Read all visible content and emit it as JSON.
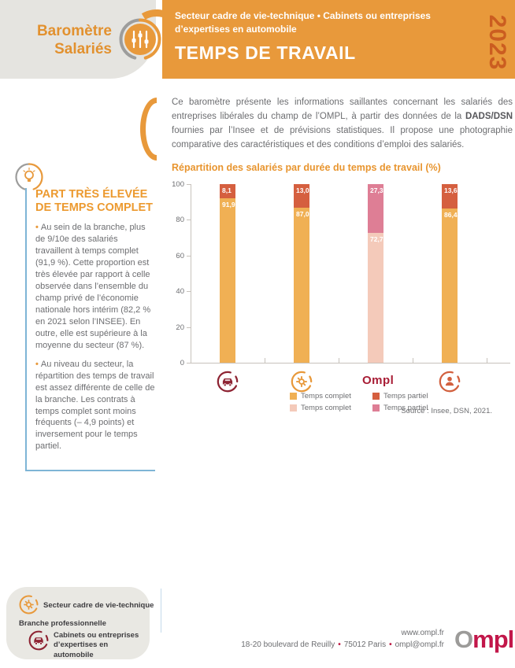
{
  "header": {
    "brand_line1": "Baromètre",
    "brand_line2": "Salariés",
    "subtitle_line1": "Secteur cadre de vie-technique  •  Cabinets ou entreprises",
    "subtitle_line2": "d’expertises en automobile",
    "title": "TEMPS DE TRAVAIL",
    "year": "2023"
  },
  "intro": {
    "lead_before": "Ce baromètre présente les informations saillantes concernant les salariés des entreprises libérales du champ de l’OMPL, à partir des données de la ",
    "lead_bold": "DADS/DSN",
    "lead_after": " fournies par l’Insee et de prévisions statistiques. Il propose une photographie comparative des caractéristiques et des conditions d’emploi des salariés."
  },
  "sidebar": {
    "heading_line1": "PART TRÈS ÉLEVÉE",
    "heading_line2": "DE TEMPS COMPLET",
    "bullets": [
      "Au sein de la branche, plus de 9/10e des salariés travaillent à temps complet (91,9 %). Cette proportion est très élevée par rapport à celle observée dans l’ensemble du champ privé de l’économie nationale hors intérim (82,2 % en 2021 selon l’INSEE). En outre, elle est supérieure à la moyenne du secteur (87 %).",
      "Au niveau du secteur, la répartition des temps de travail est assez différente de celle de la branche. Les contrats à temps complet sont moins fréquents (– 4,9 points) et inversement pour le temps partiel."
    ]
  },
  "chart_data": {
    "type": "bar",
    "stacked": true,
    "title": "Répartition des salariés par durée du temps de travail (%)",
    "categories": [
      "car-circle-icon",
      "tools-circle-icon",
      "ompl-logo",
      "person-circle-icon"
    ],
    "ompl_axis_text": "Ompl",
    "series": [
      {
        "name": "Temps complet",
        "values": [
          91.9,
          87.0,
          72.7,
          86.4
        ],
        "labels": [
          "91,9",
          "87,0",
          "72,7",
          "86,4"
        ],
        "colors": [
          "#F0B054",
          "#F0B054",
          "#F4CABA",
          "#F0B054"
        ]
      },
      {
        "name": "Temps partiel",
        "values": [
          8.1,
          13.0,
          27.3,
          13.6
        ],
        "labels": [
          "8,1",
          "13,0",
          "27,3",
          "13,6"
        ],
        "colors": [
          "#D55F3F",
          "#D55F3F",
          "#DE7E95",
          "#D55F3F"
        ]
      }
    ],
    "ylim": [
      0,
      100
    ],
    "yticks": [
      0,
      20,
      40,
      60,
      80,
      100
    ],
    "grid": false,
    "legend_position": "bottom",
    "legend": [
      {
        "label": "Temps complet",
        "color": "#F0B054"
      },
      {
        "label": "Temps partiel",
        "color": "#D55F3F"
      },
      {
        "label": "Temps complet",
        "color": "#F4CABA"
      },
      {
        "label": "Temps partiel",
        "color": "#DE7E95"
      }
    ],
    "source": "Source : Insee, DSN, 2021."
  },
  "branch_box": {
    "sector_label": "Secteur cadre de vie-technique",
    "branch_title": "Branche professionnelle",
    "branch_label_line1": "Cabinets ou entreprises",
    "branch_label_line2": "d’expertises en automobile"
  },
  "footer": {
    "website": "www.ompl.fr",
    "address_parts": [
      "18-20 boulevard de Reuilly",
      "75012 Paris",
      "ompl@ompl.fr"
    ],
    "logo_o": "O",
    "logo_rest": "mpl"
  },
  "colors": {
    "accent_orange": "#E8993B",
    "year_orange": "#CB5D20",
    "blue_border": "#7EB5D6",
    "dark_red": "#8E2433",
    "ompl_red": "#C2174A",
    "text_gray": "#6D6E71"
  }
}
